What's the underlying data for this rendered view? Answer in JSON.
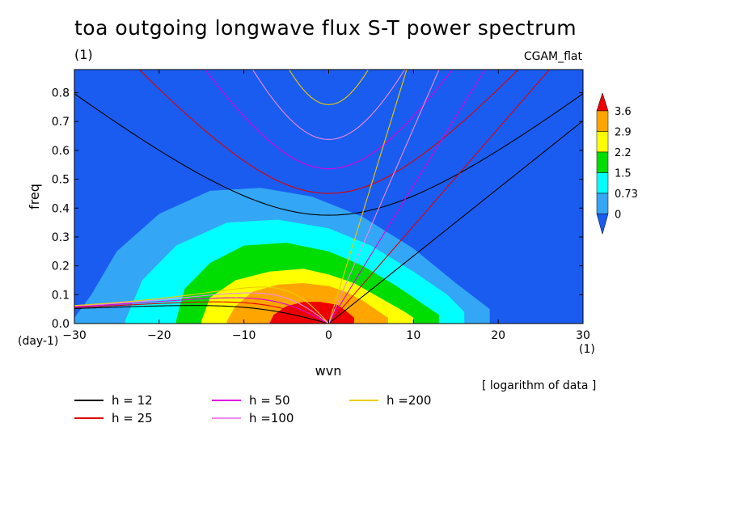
{
  "chart_data": {
    "type": "contour",
    "title": "toa outgoing longwave flux S-T power spectrum",
    "subtitle": "(1)",
    "dataset": "CGAM_flat",
    "xlabel": "wvn",
    "ylabel": "freq",
    "x_unit": "(1)",
    "y_unit": "(day-1)",
    "xlim": [
      -30,
      30
    ],
    "ylim": [
      0.0,
      0.88
    ],
    "xticks": [
      -30,
      -20,
      -10,
      0,
      10,
      20,
      30
    ],
    "yticks": [
      0.0,
      0.1,
      0.2,
      0.3,
      0.4,
      0.5,
      0.6,
      0.7,
      0.8
    ],
    "note": "[ logarithm of data ]",
    "colorbar": {
      "levels": [
        0,
        0.73,
        1.5,
        2.2,
        2.9,
        3.6
      ],
      "labels": [
        "0",
        "0.73",
        "1.5",
        "2.2",
        "2.9",
        "3.6"
      ],
      "colors": [
        "#1a5cf0",
        "#33a6f5",
        "#00ffff",
        "#00dd00",
        "#ffff00",
        "#ffa500",
        "#ee0000"
      ]
    },
    "dispersion_curves": [
      {
        "name": "h = 12",
        "h": 12,
        "color": "#000000"
      },
      {
        "name": "h = 25",
        "h": 25,
        "color": "#dd0000"
      },
      {
        "name": "h = 50",
        "h": 50,
        "color": "#dd00dd"
      },
      {
        "name": "h =100",
        "h": 100,
        "color": "#ee88ee"
      },
      {
        "name": "h =200",
        "h": 200,
        "color": "#eecc00"
      }
    ]
  }
}
